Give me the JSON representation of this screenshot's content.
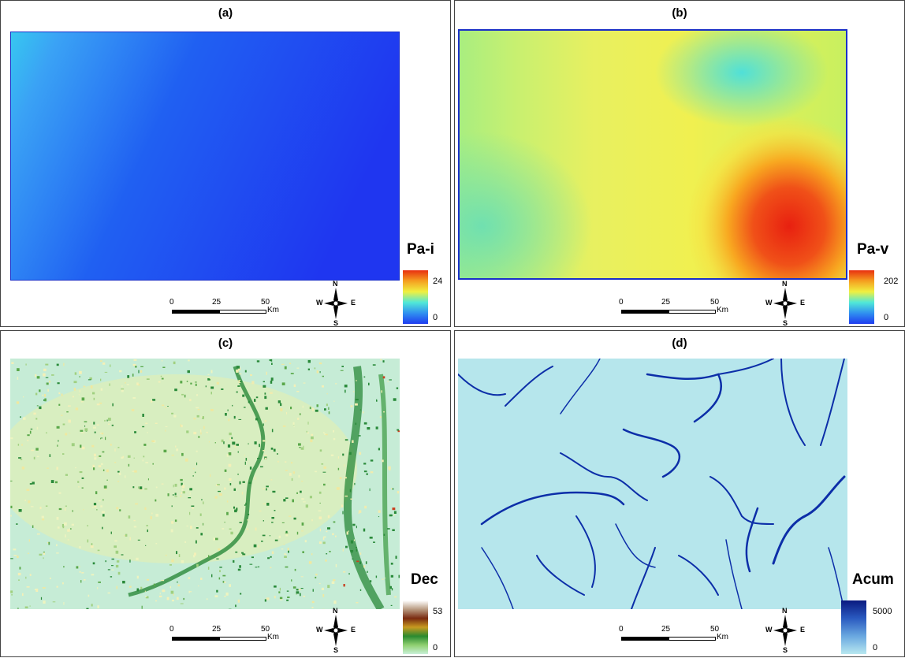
{
  "panels": [
    {
      "title": "(a)",
      "legend": {
        "title": "Pa-i",
        "max": "24",
        "min": "0"
      }
    },
    {
      "title": "(b)",
      "legend": {
        "title": "Pa-v",
        "max": "202",
        "min": "0"
      }
    },
    {
      "title": "(c)",
      "legend": {
        "title": "Dec",
        "max": "53",
        "min": "0"
      }
    },
    {
      "title": "(d)",
      "legend": {
        "title": "Acum",
        "max": "5000",
        "min": "0"
      }
    }
  ],
  "scalebar": {
    "tick_0": "0",
    "tick_25": "25",
    "tick_50": "50",
    "unit": "Km"
  },
  "compass": {
    "north": "N",
    "south": "S",
    "east": "E",
    "west": "W"
  },
  "colors": {
    "rainbow_low": "#1f3cf0",
    "rainbow_mid": "#8ff2a0",
    "rainbow_high": "#e83010",
    "slope_base": "#c8eed8",
    "slope_mid": "#1e8a3a",
    "slope_high": "#7a3b1c",
    "flow_base": "#b4e8ee",
    "flow_high": "#0a2aa0"
  }
}
